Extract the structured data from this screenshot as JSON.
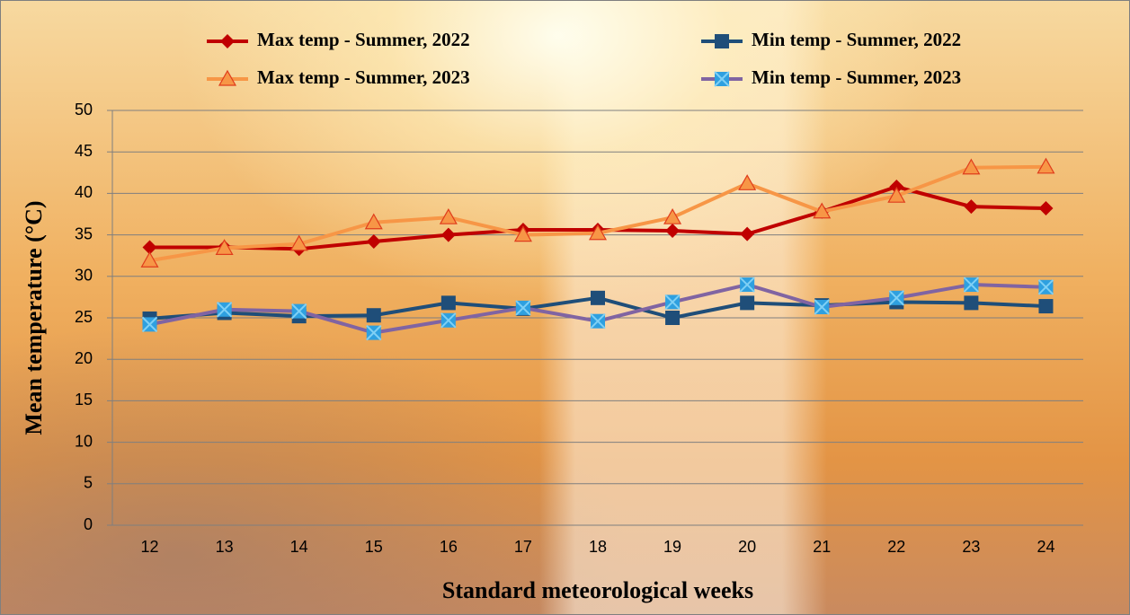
{
  "chart_data": {
    "type": "line",
    "x_label": "Standard meteorological weeks",
    "y_label": "Mean temperature (°C)",
    "categories": [
      "12",
      "13",
      "14",
      "15",
      "16",
      "17",
      "18",
      "19",
      "20",
      "21",
      "22",
      "23",
      "24"
    ],
    "ylim": [
      0,
      50
    ],
    "yticks": [
      0,
      5,
      10,
      15,
      20,
      25,
      30,
      35,
      40,
      45,
      50
    ],
    "grid": true,
    "series": [
      {
        "name": "Max temp - Summer, 2022",
        "color": "#c00000",
        "marker": "diamond",
        "marker_color": "#c00000",
        "values": [
          33.5,
          33.5,
          33.3,
          34.2,
          35.0,
          35.6,
          35.6,
          35.5,
          35.1,
          37.8,
          40.8,
          38.4,
          38.2
        ]
      },
      {
        "name": "Min temp - Summer, 2022",
        "color": "#1f4e79",
        "marker": "square",
        "marker_color": "#1f4e79",
        "values": [
          24.9,
          25.6,
          25.2,
          25.3,
          26.8,
          26.1,
          27.4,
          25.0,
          26.8,
          26.5,
          26.9,
          26.8,
          26.4
        ]
      },
      {
        "name": "Max temp - Summer, 2023",
        "color": "#f79646",
        "marker": "triangle",
        "marker_color": "#f79646",
        "values": [
          31.9,
          33.4,
          33.9,
          36.5,
          37.1,
          35.0,
          35.2,
          37.1,
          41.2,
          37.8,
          39.7,
          43.1,
          43.2
        ]
      },
      {
        "name": "Min temp - Summer, 2023",
        "color": "#8064a2",
        "marker": "xsquare",
        "marker_color": "#2ea0e0",
        "values": [
          24.2,
          26.0,
          25.8,
          23.2,
          24.7,
          26.2,
          24.6,
          26.9,
          29.0,
          26.3,
          27.4,
          29.0,
          28.7
        ]
      }
    ]
  }
}
